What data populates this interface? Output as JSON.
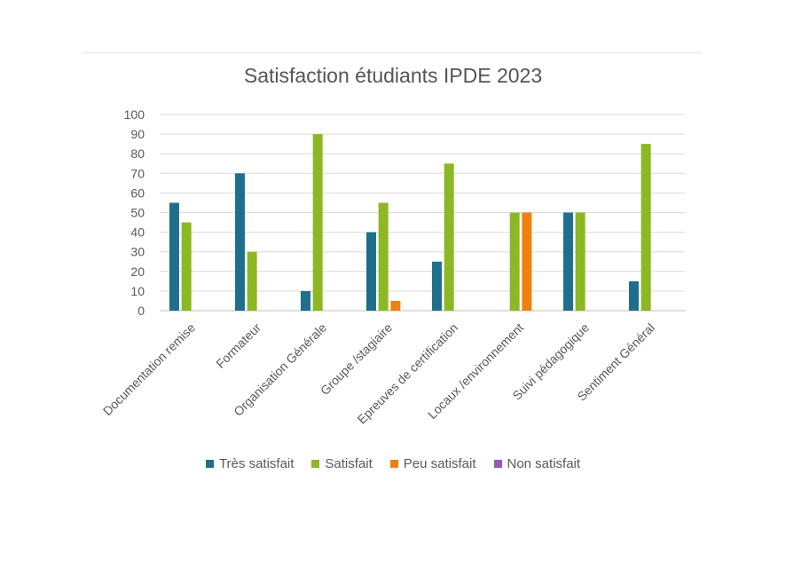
{
  "chart_data": {
    "type": "bar",
    "title": "Satisfaction étudiants IPDE 2023",
    "categories": [
      "Documentation remise",
      "Formateur",
      "Organisation Générale",
      "Groupe /stagiaire",
      "Epreuves de certification",
      "Locaux /environnement",
      "Suivi pédagogique",
      "Sentiment Général"
    ],
    "series": [
      {
        "name": "Très satisfait",
        "color": "#1f6e8c",
        "values": [
          55,
          70,
          10,
          40,
          25,
          0,
          50,
          15
        ]
      },
      {
        "name": "Satisfait",
        "color": "#8cb823",
        "values": [
          45,
          30,
          90,
          55,
          75,
          50,
          50,
          85
        ]
      },
      {
        "name": "Peu satisfait",
        "color": "#ee7f11",
        "values": [
          0,
          0,
          0,
          5,
          0,
          50,
          0,
          0
        ]
      },
      {
        "name": "Non satisfait",
        "color": "#9b57b1",
        "values": [
          0,
          0,
          0,
          0,
          0,
          0,
          0,
          0
        ]
      }
    ],
    "ylim": [
      0,
      100
    ],
    "yticks": [
      0,
      10,
      20,
      30,
      40,
      50,
      60,
      70,
      80,
      90,
      100
    ],
    "grid": true,
    "legend_position": "bottom"
  }
}
